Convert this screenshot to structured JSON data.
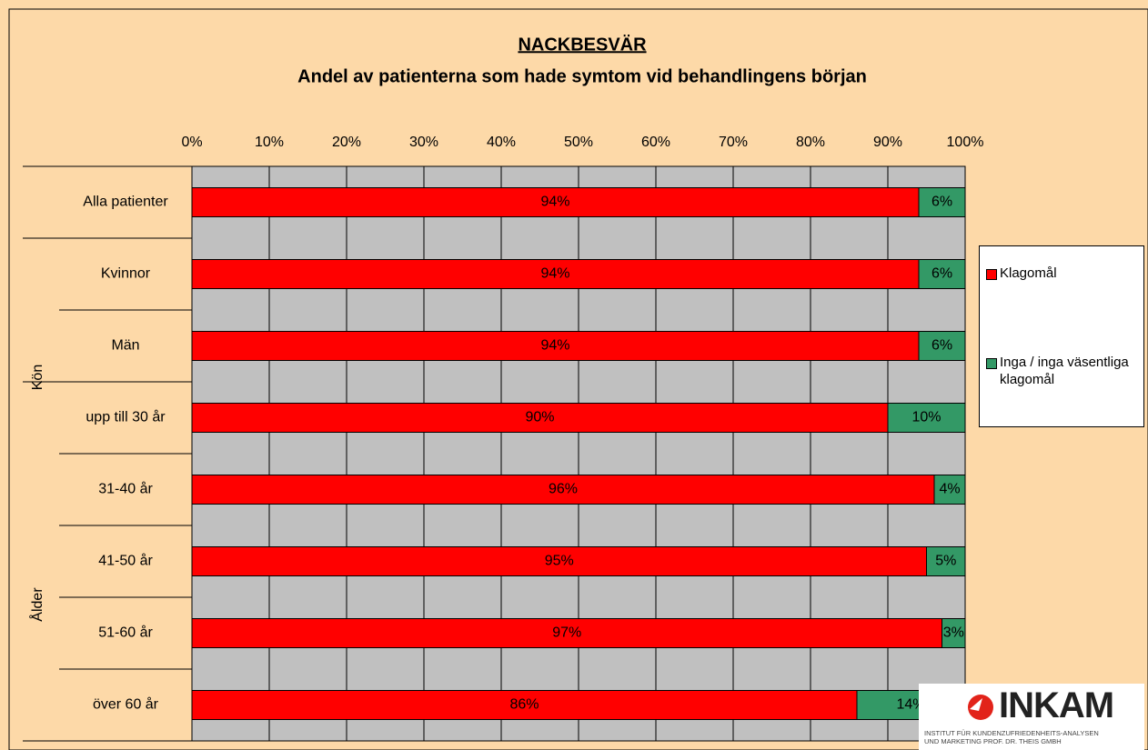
{
  "chart_data": {
    "type": "stacked-barh",
    "title": "NACKBESVÄR",
    "subtitle": "Andel av patienterna som hade symtom vid behandlingens början",
    "categories": [
      "Alla patienter",
      "Kvinnor",
      "Män",
      "upp till 30 år",
      "31-40 år",
      "41-50 år",
      "51-60 år",
      "över 60 år"
    ],
    "group_labels": [
      "Kön",
      "Ålder"
    ],
    "series": [
      {
        "name": "Klagomål",
        "color": "#ff0000",
        "values": [
          94,
          94,
          94,
          90,
          96,
          95,
          97,
          86
        ],
        "value_labels": [
          "94%",
          "94%",
          "94%",
          "90%",
          "96%",
          "95%",
          "97%",
          "86%"
        ]
      },
      {
        "name": "Inga / inga väsentliga klagomål",
        "color": "#339966",
        "values": [
          6,
          6,
          6,
          10,
          4,
          5,
          3,
          14
        ],
        "value_labels": [
          "6%",
          "6%",
          "6%",
          "10%",
          "4%",
          "5%",
          "3%",
          "14%"
        ]
      }
    ],
    "xlim": [
      0,
      100
    ],
    "xticks": [
      {
        "value": 0,
        "label": "0%"
      },
      {
        "value": 10,
        "label": "10%"
      },
      {
        "value": 20,
        "label": "20%"
      },
      {
        "value": 30,
        "label": "30%"
      },
      {
        "value": 40,
        "label": "40%"
      },
      {
        "value": 50,
        "label": "50%"
      },
      {
        "value": 60,
        "label": "60%"
      },
      {
        "value": 70,
        "label": "70%"
      },
      {
        "value": 80,
        "label": "80%"
      },
      {
        "value": 90,
        "label": "90%"
      },
      {
        "value": 100,
        "label": "100%"
      }
    ],
    "grid": true,
    "legend": "right"
  },
  "logo": {
    "name": "INKAM",
    "tagline": [
      "INSTITUT FÜR KUNDENZUFRIEDENHEITS-ANALYSEN",
      "UND MARKETING PROF. DR. THEIS GMBH"
    ]
  }
}
